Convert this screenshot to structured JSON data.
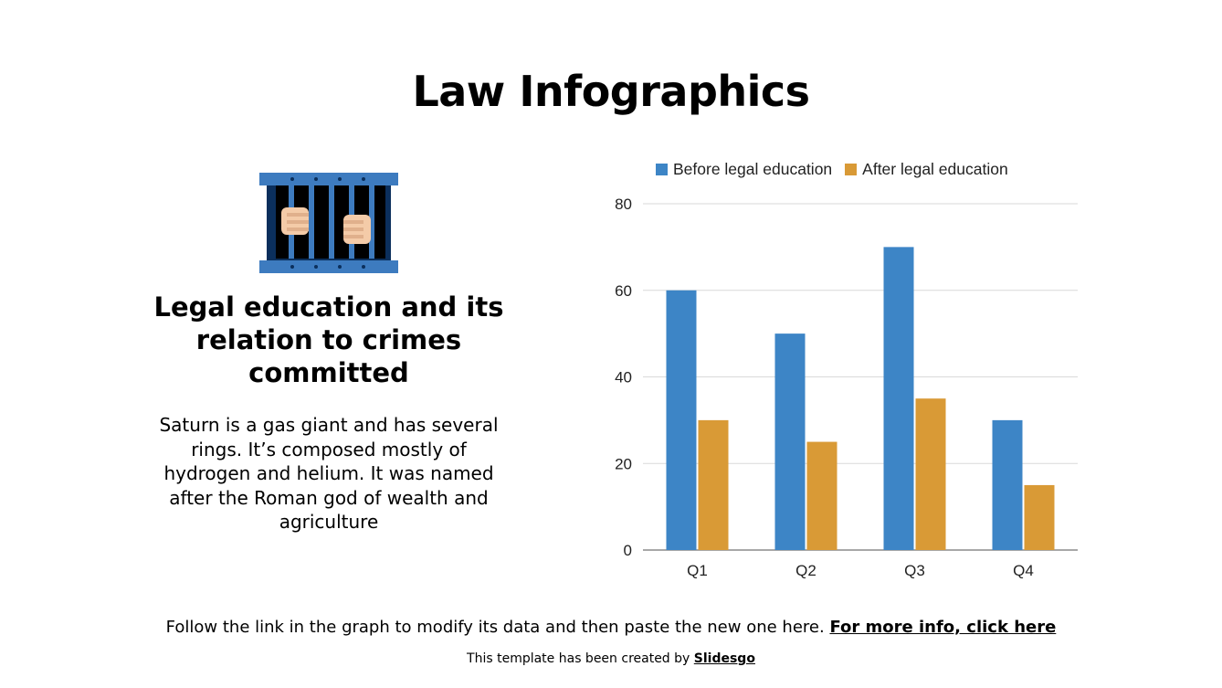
{
  "slide": {
    "title": "Law Infographics",
    "heading": "Legal education and its relation to crimes committed",
    "body": "Saturn is a gas giant and has several rings. It’s composed mostly of hydrogen and helium. It was named after the Roman god of wealth and agriculture",
    "icon": "jail-icon"
  },
  "footer": {
    "text": "Follow the link in the graph to modify its data and then paste the new one here.",
    "link_text": "For more info, click here"
  },
  "credit": {
    "text": "This template has been created by",
    "link_text": "Slidesgo"
  },
  "colors": {
    "series_before": "#3d85c6",
    "series_after": "#d99a36",
    "jail_frame": "#3d7bbf",
    "jail_dark": "#0b2f5c",
    "jail_bars": "#3d7bbf",
    "skin": "#f4cba8"
  },
  "chart_data": {
    "type": "bar",
    "categories": [
      "Q1",
      "Q2",
      "Q3",
      "Q4"
    ],
    "series": [
      {
        "name": "Before legal education",
        "values": [
          60,
          50,
          70,
          30
        ]
      },
      {
        "name": "After legal education",
        "values": [
          30,
          25,
          35,
          15
        ]
      }
    ],
    "ylim": [
      0,
      80
    ],
    "yticks": [
      0,
      20,
      40,
      60,
      80
    ],
    "grid": true,
    "legend": "top"
  }
}
